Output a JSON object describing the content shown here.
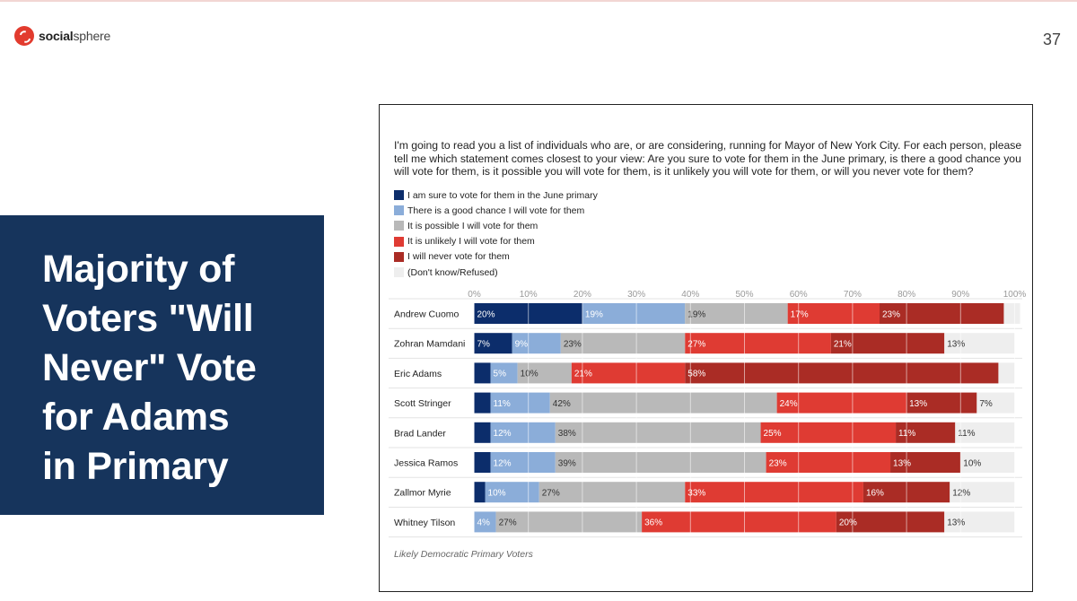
{
  "header": {
    "logo_bold": "social",
    "logo_light": "sphere",
    "page_number": "37"
  },
  "title": {
    "lines": [
      "Majority of",
      "Voters \"Will",
      "Never\" Vote",
      "for Adams",
      "in Primary"
    ]
  },
  "chart_data": {
    "type": "bar",
    "orientation": "horizontal",
    "stacked": true,
    "question": "I'm going to read you a list of individuals who are, or are considering, running for Mayor of New York City. For each person, please tell me which statement comes closest to your view: Are you sure to vote for them in the June primary, is there a good chance you will vote for them, is it possible you will vote for them, is it unlikely you will vote for them, or will you never vote for them?",
    "xlim": [
      0,
      100
    ],
    "ticks": [
      "0%",
      "10%",
      "20%",
      "30%",
      "40%",
      "50%",
      "60%",
      "70%",
      "80%",
      "90%",
      "100%"
    ],
    "grid": true,
    "legend_position": "top-left",
    "categories": [
      "Andrew Cuomo",
      "Zohran Mamdani",
      "Eric Adams",
      "Scott Stringer",
      "Brad Lander",
      "Jessica Ramos",
      "Zallmor Myrie",
      "Whitney Tilson"
    ],
    "series": [
      {
        "name": "I am sure to vote for them in the June primary",
        "color": "#0c2d6b",
        "text_color": "#ffffff",
        "values": [
          20,
          7,
          3,
          3,
          3,
          3,
          2,
          0
        ],
        "labels": [
          "20%",
          "7%",
          "",
          "",
          "",
          "",
          "",
          ""
        ]
      },
      {
        "name": "There is a good chance I will vote for them",
        "color": "#8badd9",
        "text_color": "#ffffff",
        "values": [
          19,
          9,
          5,
          11,
          12,
          12,
          10,
          4
        ],
        "labels": [
          "19%",
          "9%",
          "5%",
          "11%",
          "12%",
          "12%",
          "10%",
          "4%"
        ]
      },
      {
        "name": "It is possible I will vote for them",
        "color": "#b9b9b9",
        "text_color": "#333333",
        "values": [
          19,
          23,
          10,
          42,
          38,
          39,
          27,
          27
        ],
        "labels": [
          "19%",
          "23%",
          "10%",
          "42%",
          "38%",
          "39%",
          "27%",
          "27%"
        ]
      },
      {
        "name": "It is unlikely I will vote for them",
        "color": "#df3b33",
        "text_color": "#ffffff",
        "values": [
          17,
          27,
          21,
          24,
          25,
          23,
          33,
          36
        ],
        "labels": [
          "17%",
          "27%",
          "21%",
          "24%",
          "25%",
          "23%",
          "33%",
          "36%"
        ]
      },
      {
        "name": "I will never vote for them",
        "color": "#aa2c25",
        "text_color": "#ffffff",
        "values": [
          23,
          21,
          58,
          13,
          11,
          13,
          16,
          20
        ],
        "labels": [
          "23%",
          "21%",
          "58%",
          "13%",
          "11%",
          "13%",
          "16%",
          "20%"
        ]
      },
      {
        "name": "(Don't know/Refused)",
        "color": "#eeeeee",
        "text_color": "#333333",
        "values": [
          3,
          13,
          3,
          7,
          11,
          10,
          12,
          13
        ],
        "labels": [
          "",
          "13%",
          "",
          "7%",
          "11%",
          "10%",
          "12%",
          "13%"
        ]
      }
    ],
    "footnote": "Likely Democratic Primary Voters"
  }
}
